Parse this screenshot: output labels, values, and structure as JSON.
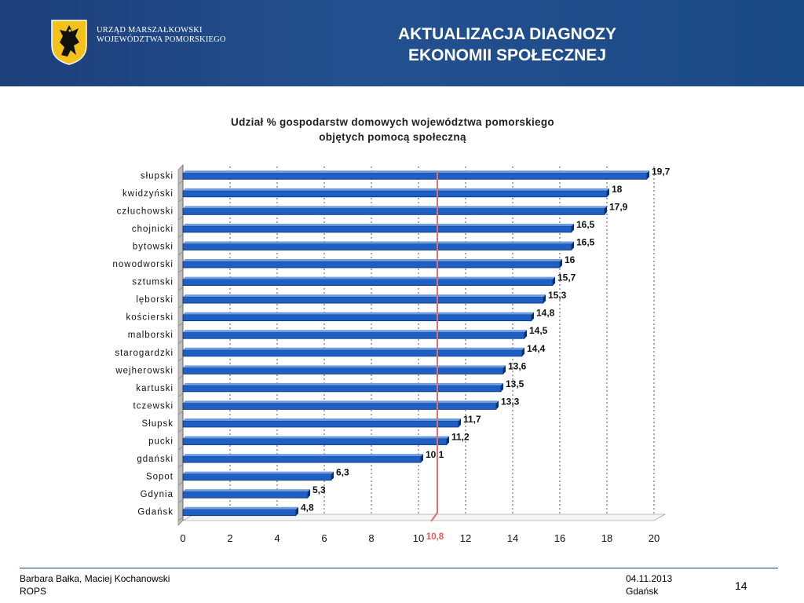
{
  "header": {
    "org_line1": "URZĄD MARSZAŁKOWSKI",
    "org_line2": "WOJEWÓDZTWA POMORSKIEGO",
    "title_line1": "AKTUALIZACJA DIAGNOZY",
    "title_line2": "EKONOMII SPOŁECZNEJ"
  },
  "colors": {
    "header_bg": "#1d3f7a",
    "bar": "#1e5fc4",
    "reference_line": "#e07070",
    "reference_label": "#e06060"
  },
  "chart_data": {
    "type": "bar",
    "orientation": "horizontal",
    "title_line1": "Udział % gospodarstw domowych województwa pomorskiego",
    "title_line2": "objętych pomocą społeczną",
    "categories": [
      "słupski",
      "kwidzyński",
      "człuchowski",
      "chojnicki",
      "bytowski",
      "nowodworski",
      "sztumski",
      "lęborski",
      "kościerski",
      "malborski",
      "starogardzki",
      "wejherowski",
      "kartuski",
      "tczewski",
      "Słupsk",
      "pucki",
      "gdański",
      "Sopot",
      "Gdynia",
      "Gdańsk"
    ],
    "values": [
      19.7,
      18,
      17.9,
      16.5,
      16.5,
      16,
      15.7,
      15.3,
      14.8,
      14.5,
      14.4,
      13.6,
      13.5,
      13.3,
      11.7,
      11.2,
      10.1,
      6.3,
      5.3,
      4.8
    ],
    "value_labels": [
      "19,7",
      "18",
      "17,9",
      "16,5",
      "16,5",
      "16",
      "15,7",
      "15,3",
      "14,8",
      "14,5",
      "14,4",
      "13,6",
      "13,5",
      "13,3",
      "11,7",
      "11,2",
      "10,1",
      "6,3",
      "5,3",
      "4,8"
    ],
    "xlim": [
      0,
      20
    ],
    "xticks": [
      0,
      2,
      4,
      6,
      8,
      10,
      12,
      14,
      16,
      18,
      20
    ],
    "xtick_labels": [
      "0",
      "2",
      "4",
      "6",
      "8",
      "10",
      "12",
      "14",
      "16",
      "18",
      "20"
    ],
    "reference_value": 10.8,
    "reference_label": "10,8",
    "grid": "vertical dashed"
  },
  "footer": {
    "authors": "Barbara Bałka, Maciej Kochanowski",
    "org": "ROPS",
    "date": "04.11.2013",
    "city": "Gdańsk",
    "page": "14"
  }
}
